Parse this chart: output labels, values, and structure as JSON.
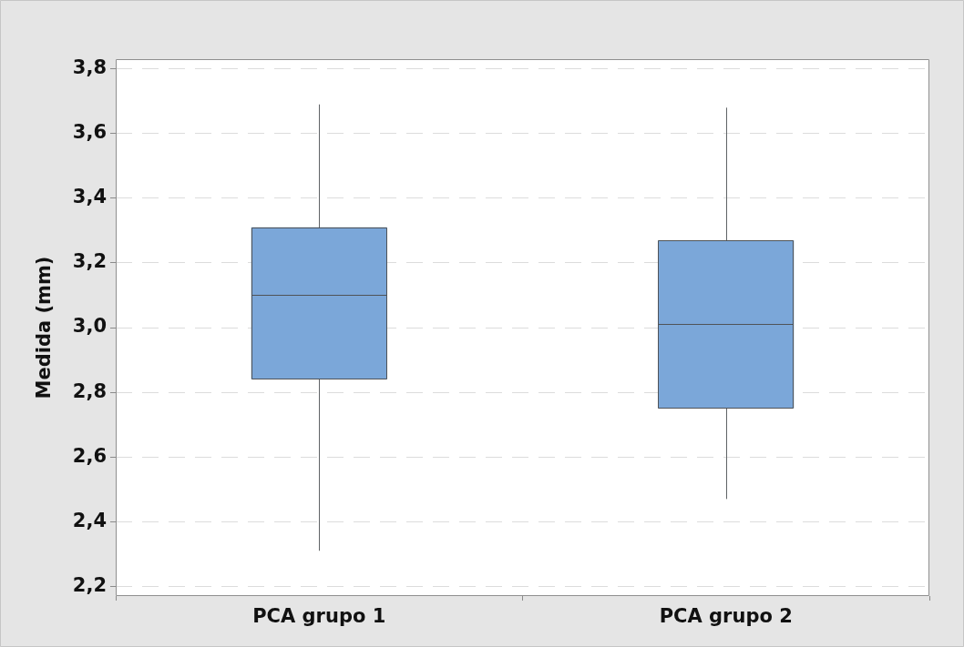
{
  "chart_data": {
    "type": "box",
    "ylabel": "Medida (mm)",
    "categories": [
      "PCA grupo 1",
      "PCA grupo 2"
    ],
    "boxes": [
      {
        "low": 2.31,
        "q1": 2.84,
        "median": 3.1,
        "q3": 3.31,
        "high": 3.69
      },
      {
        "low": 2.47,
        "q1": 2.75,
        "median": 3.01,
        "q3": 3.27,
        "high": 3.68
      }
    ],
    "color": "#7ba7d9",
    "ylim": [
      2.17,
      3.83
    ],
    "yticks": [
      {
        "value": 2.2,
        "label": "2,2"
      },
      {
        "value": 2.4,
        "label": "2,4"
      },
      {
        "value": 2.6,
        "label": "2,6"
      },
      {
        "value": 2.8,
        "label": "2,8"
      },
      {
        "value": 3.0,
        "label": "3,0"
      },
      {
        "value": 3.2,
        "label": "3,2"
      },
      {
        "value": 3.4,
        "label": "3,4"
      },
      {
        "value": 3.6,
        "label": "3,6"
      },
      {
        "value": 3.8,
        "label": "3,8"
      }
    ],
    "grid": "y"
  }
}
